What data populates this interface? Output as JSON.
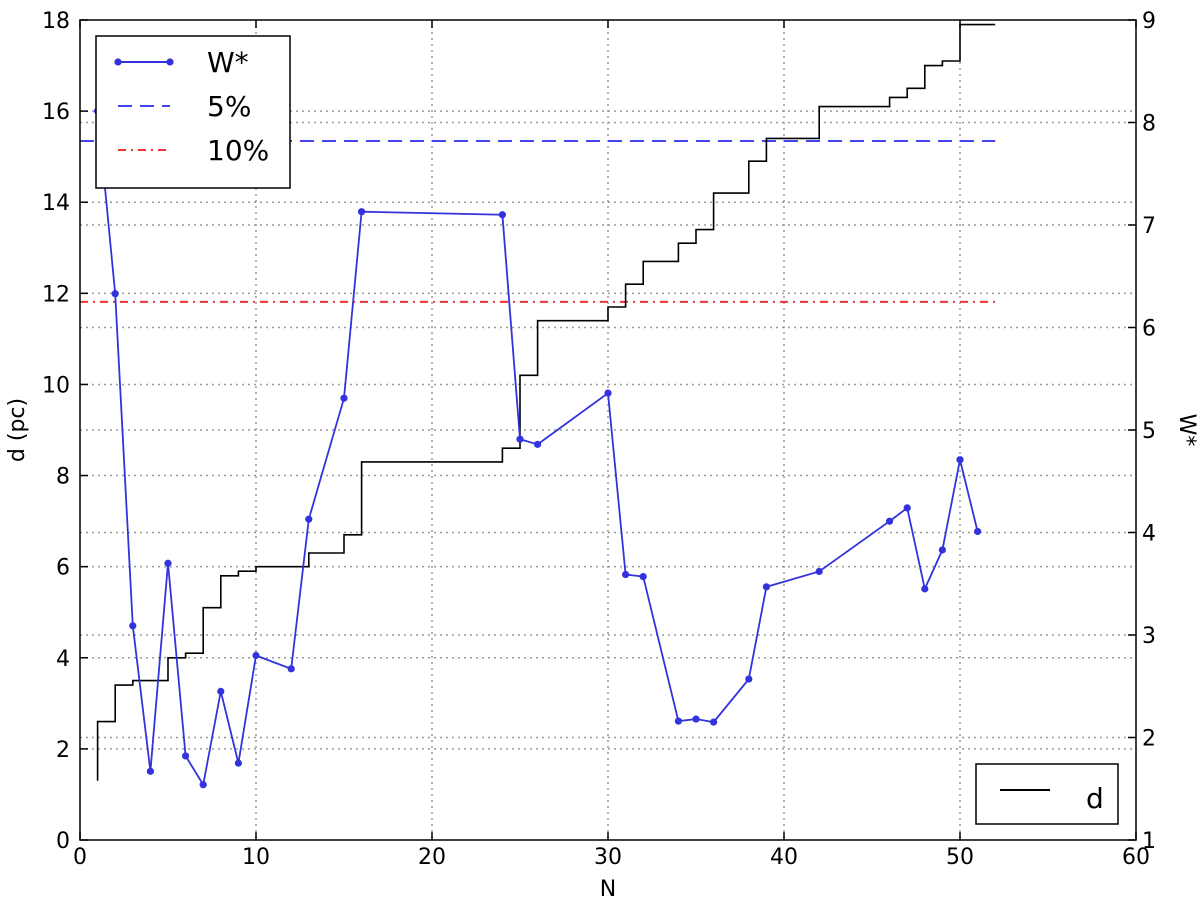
{
  "chart_data": {
    "type": "line",
    "xlabel": "N",
    "ylabel_left": "d (pc)",
    "ylabel_right": "W*",
    "xlim": [
      0,
      60
    ],
    "ylim_left": [
      0,
      18
    ],
    "ylim_right": [
      1,
      9
    ],
    "x_ticks": [
      0,
      10,
      20,
      30,
      40,
      50,
      60
    ],
    "y_left_ticks": [
      0,
      2,
      4,
      6,
      8,
      10,
      12,
      14,
      16,
      18
    ],
    "y_right_ticks": [
      1,
      2,
      3,
      4,
      5,
      6,
      7,
      8,
      9
    ],
    "grid": true,
    "legend_main": {
      "placement": "top-left",
      "entries": [
        {
          "label": "W*",
          "color": "#3333dd",
          "style": "solid-marker"
        },
        {
          "label": "5%",
          "color": "#4444ee",
          "style": "dashed"
        },
        {
          "label": "10%",
          "color": "#ee3333",
          "style": "dashdot"
        }
      ]
    },
    "legend_secondary": {
      "placement": "bottom-right",
      "entries": [
        {
          "label": "d",
          "color": "#000000",
          "style": "solid"
        }
      ]
    },
    "thresholds": [
      {
        "name": "5%",
        "axis": "right",
        "value": 7.82,
        "x_end": 52,
        "color": "#4444ee"
      },
      {
        "name": "10%",
        "axis": "right",
        "value": 6.25,
        "x_end": 52,
        "color": "#ee3333"
      }
    ],
    "series": [
      {
        "name": "W*",
        "axis": "right",
        "color": "#3333dd",
        "x": [
          1,
          2,
          3,
          4,
          5,
          6,
          7,
          8,
          9,
          10,
          12,
          13,
          15,
          16,
          24,
          25,
          26,
          30,
          31,
          32,
          34,
          35,
          36,
          38,
          39,
          42,
          46,
          47,
          48,
          49,
          50,
          51
        ],
        "y": [
          8.11,
          6.33,
          3.09,
          1.67,
          3.7,
          1.82,
          1.54,
          2.45,
          1.75,
          2.8,
          2.67,
          4.13,
          5.31,
          7.13,
          7.1,
          4.91,
          4.86,
          5.36,
          3.59,
          3.57,
          2.16,
          2.18,
          2.15,
          2.57,
          3.47,
          3.62,
          4.11,
          4.24,
          3.45,
          3.83,
          4.71,
          4.01
        ]
      },
      {
        "name": "d",
        "axis": "left",
        "color": "#000000",
        "style": "step",
        "x": [
          1,
          2,
          3,
          5,
          6,
          7,
          8,
          9,
          10,
          13,
          15,
          16,
          24,
          25,
          26,
          30,
          31,
          32,
          34,
          35,
          36,
          38,
          39,
          42,
          46,
          47,
          48,
          49,
          50,
          51,
          52
        ],
        "y": [
          2.6,
          3.4,
          3.5,
          4.0,
          4.1,
          5.1,
          5.8,
          5.9,
          6.0,
          6.3,
          6.7,
          8.3,
          8.6,
          10.2,
          11.4,
          11.7,
          12.2,
          12.7,
          13.1,
          13.4,
          14.2,
          14.9,
          15.4,
          16.1,
          16.3,
          16.5,
          17.0,
          17.1,
          17.9,
          17.9,
          17.9
        ],
        "start_y": 1.3
      }
    ]
  }
}
